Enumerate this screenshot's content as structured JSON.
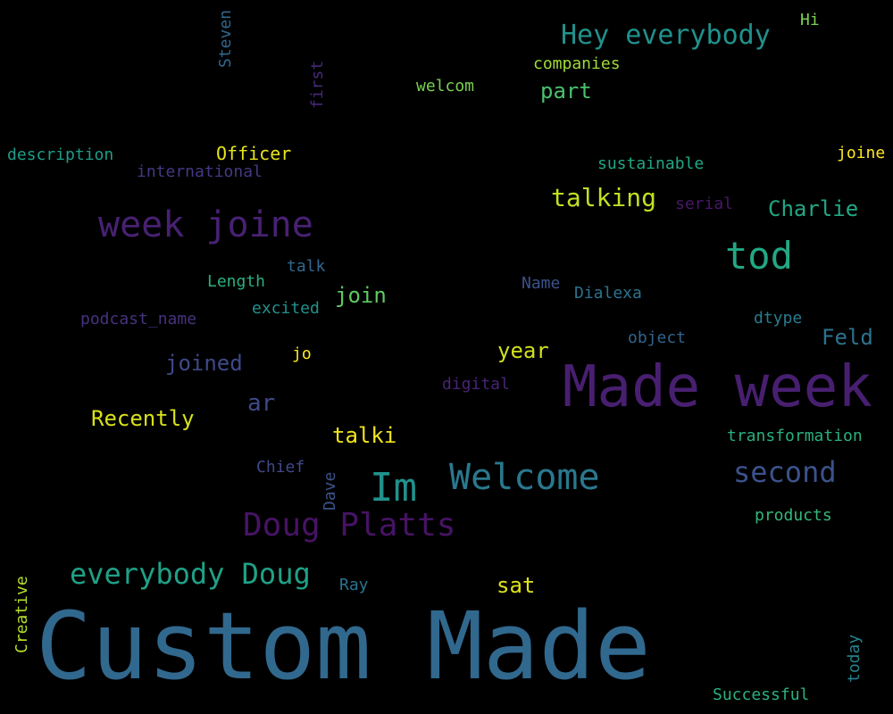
{
  "words": {
    "custom_made": {
      "text": "Custom Made",
      "color": "#31688e"
    },
    "made_week": {
      "text": "Made week",
      "color": "#481f70"
    },
    "week_joine": {
      "text": "week joine",
      "color": "#482173"
    },
    "doug_platts": {
      "text": "Doug Platts",
      "color": "#471365"
    },
    "im": {
      "text": "Im",
      "color": "#21918c"
    },
    "welcome": {
      "text": "Welcome",
      "color": "#2a788e"
    },
    "tod": {
      "text": "tod",
      "color": "#22a884"
    },
    "hey_everybody": {
      "text": "Hey everybody",
      "color": "#21918c"
    },
    "everybody_doug": {
      "text": "everybody Doug",
      "color": "#1fa187"
    },
    "second": {
      "text": "second",
      "color": "#3b528b"
    },
    "talking": {
      "text": "talking",
      "color": "#c2df23"
    },
    "charlie": {
      "text": "Charlie",
      "color": "#22a884"
    },
    "joined": {
      "text": "joined",
      "color": "#3e4989"
    },
    "ar": {
      "text": "ar",
      "color": "#3e4989"
    },
    "recently": {
      "text": "Recently",
      "color": "#d8e219"
    },
    "talki": {
      "text": "talki",
      "color": "#f1e51d"
    },
    "join": {
      "text": "join",
      "color": "#5ec962"
    },
    "year": {
      "text": "year",
      "color": "#d0e11c"
    },
    "feld": {
      "text": "Feld",
      "color": "#2c728e"
    },
    "sat": {
      "text": "sat",
      "color": "#dde318"
    },
    "part": {
      "text": "part",
      "color": "#4ac16d"
    },
    "companies": {
      "text": "companies",
      "color": "#a0da39"
    },
    "hi": {
      "text": "Hi",
      "color": "#7ad151"
    },
    "welcom": {
      "text": "welcom",
      "color": "#7ad151"
    },
    "description": {
      "text": "description",
      "color": "#1f9e89"
    },
    "officer": {
      "text": "Officer",
      "color": "#e5e419"
    },
    "international": {
      "text": "international",
      "color": "#443983"
    },
    "sustainable": {
      "text": "sustainable",
      "color": "#22a884"
    },
    "joine": {
      "text": "joine",
      "color": "#fde725"
    },
    "serial": {
      "text": "serial",
      "color": "#481769"
    },
    "talk": {
      "text": "talk",
      "color": "#31688e"
    },
    "length": {
      "text": "Length",
      "color": "#2ab07f"
    },
    "name": {
      "text": "Name",
      "color": "#3b528b"
    },
    "dialexa": {
      "text": "Dialexa",
      "color": "#2c728e"
    },
    "excited": {
      "text": "excited",
      "color": "#21918c"
    },
    "podcast_name": {
      "text": "podcast_name",
      "color": "#46327e"
    },
    "dtype": {
      "text": "dtype",
      "color": "#287c8e"
    },
    "object": {
      "text": "object",
      "color": "#33638d"
    },
    "jo": {
      "text": "jo",
      "color": "#fde725"
    },
    "digital": {
      "text": "digital",
      "color": "#482475"
    },
    "transformation": {
      "text": "transformation",
      "color": "#29af7f"
    },
    "chief": {
      "text": "Chief",
      "color": "#3e4989"
    },
    "products": {
      "text": "products",
      "color": "#35b779"
    },
    "ray": {
      "text": "Ray",
      "color": "#2c728e"
    },
    "successful": {
      "text": "Successful",
      "color": "#2ab07f"
    },
    "steven": {
      "text": "Steven",
      "color": "#31688e"
    },
    "first": {
      "text": "first",
      "color": "#482878"
    },
    "dave": {
      "text": "Dave",
      "color": "#3b528b"
    },
    "creative": {
      "text": "Creative",
      "color": "#b5de2b"
    },
    "today": {
      "text": "today",
      "color": "#26828e"
    }
  }
}
